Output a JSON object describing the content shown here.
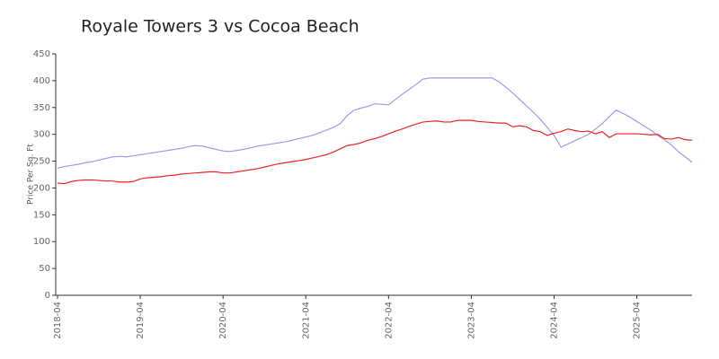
{
  "chart_data": {
    "type": "line",
    "title": "Royale Towers 3 vs Cocoa Beach",
    "y_label": "Price Per Sq. Ft",
    "x": [
      "2018-04",
      "2018-05",
      "2018-06",
      "2018-07",
      "2018-08",
      "2018-09",
      "2018-10",
      "2018-11",
      "2018-12",
      "2019-01",
      "2019-02",
      "2019-03",
      "2019-04",
      "2019-05",
      "2019-06",
      "2019-07",
      "2019-08",
      "2019-09",
      "2019-10",
      "2019-11",
      "2019-12",
      "2020-01",
      "2020-02",
      "2020-03",
      "2020-04",
      "2020-05",
      "2020-06",
      "2020-07",
      "2020-08",
      "2020-09",
      "2020-10",
      "2020-11",
      "2020-12",
      "2021-01",
      "2021-02",
      "2021-03",
      "2021-04",
      "2021-05",
      "2021-06",
      "2021-07",
      "2021-08",
      "2021-09",
      "2021-10",
      "2021-11",
      "2021-12",
      "2022-01",
      "2022-02",
      "2022-03",
      "2022-04",
      "2022-05",
      "2022-06",
      "2022-07",
      "2022-08",
      "2022-09",
      "2022-10",
      "2022-11",
      "2022-12",
      "2023-01",
      "2023-02",
      "2023-03",
      "2023-04",
      "2023-05",
      "2023-06",
      "2023-07",
      "2023-08",
      "2023-09",
      "2023-10",
      "2023-11",
      "2023-12",
      "2024-01",
      "2024-02",
      "2024-03",
      "2024-04",
      "2024-05",
      "2024-06",
      "2024-07",
      "2024-08",
      "2024-09",
      "2024-10",
      "2024-11",
      "2024-12",
      "2025-01",
      "2025-02",
      "2025-03",
      "2025-04",
      "2025-05",
      "2025-06",
      "2025-07",
      "2025-08",
      "2025-09",
      "2025-10",
      "2025-11",
      "2025-12"
    ],
    "series": [
      {
        "color": "#9c9cee",
        "values": [
          237,
          240,
          242,
          244,
          247,
          249,
          252,
          255,
          258,
          259,
          258,
          260,
          262,
          264,
          266,
          268,
          270,
          272,
          274,
          277,
          279,
          278,
          275,
          272,
          269,
          268,
          270,
          272,
          275,
          278,
          280,
          282,
          284,
          286,
          289,
          292,
          295,
          298,
          303,
          308,
          313,
          320,
          335,
          345,
          349,
          352,
          357,
          356,
          355,
          365,
          375,
          384,
          393,
          403,
          405,
          405,
          405,
          405,
          405,
          405,
          405,
          405,
          405,
          405,
          398,
          388,
          377,
          365,
          353,
          341,
          328,
          313,
          298,
          276,
          282,
          288,
          294,
          300,
          310,
          320,
          333,
          345,
          339,
          332,
          324,
          316,
          308,
          298,
          290,
          280,
          268,
          258,
          248
        ]
      },
      {
        "color": "#ee2222",
        "values": [
          209,
          208,
          212,
          214,
          215,
          215,
          214,
          213,
          213,
          211,
          211,
          212,
          217,
          219,
          220,
          221,
          223,
          224,
          226,
          227,
          228,
          229,
          230,
          230,
          228,
          228,
          230,
          232,
          234,
          236,
          239,
          242,
          245,
          247,
          249,
          251,
          253,
          256,
          259,
          262,
          267,
          273,
          279,
          281,
          284,
          289,
          292,
          296,
          301,
          306,
          310,
          315,
          319,
          323,
          324,
          325,
          323,
          323,
          326,
          326,
          326,
          324,
          323,
          322,
          321,
          321,
          314,
          316,
          314,
          307,
          305,
          298,
          302,
          305,
          310,
          307,
          305,
          306,
          301,
          305,
          294,
          301,
          301,
          301,
          301,
          300,
          299,
          300,
          292,
          291,
          294,
          290,
          289
        ]
      }
    ],
    "xlim": [
      "2018-04",
      "2025-12"
    ],
    "xticks": [
      "2018-04",
      "2019-04",
      "2020-04",
      "2021-04",
      "2022-04",
      "2023-04",
      "2024-04",
      "2025-04"
    ],
    "ylim": [
      0,
      450
    ],
    "yticks": [
      0,
      50,
      100,
      150,
      200,
      250,
      300,
      350,
      400,
      450
    ],
    "grid": false
  }
}
